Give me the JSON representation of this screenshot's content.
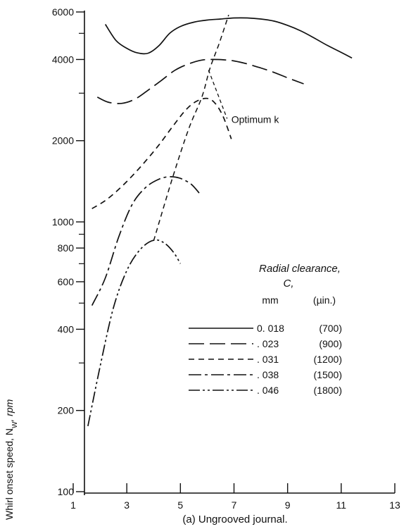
{
  "chart_data": {
    "type": "line",
    "caption": "(a) Ungrooved journal.",
    "ylabel_main": "Whirl onset speed, N",
    "ylabel_sub": "W",
    "ylabel_unit": ", rpm",
    "yscale": "log",
    "xlim": [
      1,
      13
    ],
    "ylim": [
      100,
      6000
    ],
    "x_ticks": [
      {
        "value": 1,
        "label": "1"
      },
      {
        "value": 3,
        "label": "3"
      },
      {
        "value": 5,
        "label": "5"
      },
      {
        "value": 7,
        "label": "7"
      },
      {
        "value": 9,
        "label": "9"
      },
      {
        "value": 11,
        "label": "11"
      },
      {
        "value": 13,
        "label": "13"
      }
    ],
    "y_ticks": [
      {
        "value": 100,
        "label": "100"
      },
      {
        "value": 200,
        "label": "200"
      },
      {
        "value": 400,
        "label": "400"
      },
      {
        "value": 600,
        "label": "600"
      },
      {
        "value": 800,
        "label": "800"
      },
      {
        "value": 1000,
        "label": "1000"
      },
      {
        "value": 2000,
        "label": "2000"
      },
      {
        "value": 4000,
        "label": "4000"
      },
      {
        "value": 6000,
        "label": "6000"
      }
    ],
    "legend": {
      "title_line1": "Radial clearance,",
      "title_line2": "C,",
      "col_mm": "mm",
      "col_in": "(µin.)"
    },
    "series": [
      {
        "mm": "0. 018",
        "in": "(700)",
        "dash": "none",
        "x": [
          2.2,
          2.6,
          3.0,
          3.4,
          3.8,
          4.2,
          4.6,
          5.0,
          5.5,
          6.0,
          6.5,
          7.0,
          7.5,
          8.0,
          8.5,
          9.0,
          9.5,
          10.0,
          10.5,
          11.0,
          11.4
        ],
        "y": [
          5400,
          4700,
          4400,
          4230,
          4220,
          4500,
          5000,
          5300,
          5500,
          5600,
          5650,
          5700,
          5700,
          5650,
          5550,
          5350,
          5100,
          4800,
          4500,
          4250,
          4050
        ]
      },
      {
        "mm": ". 023",
        "in": "(900)",
        "dash": "22 8",
        "x": [
          1.9,
          2.3,
          2.8,
          3.3,
          3.8,
          4.3,
          4.8,
          5.3,
          5.8,
          6.2,
          6.6,
          7.0,
          7.5,
          8.0,
          8.5,
          9.0,
          9.6
        ],
        "y": [
          2900,
          2780,
          2750,
          2850,
          3080,
          3350,
          3650,
          3850,
          3980,
          4000,
          3990,
          3950,
          3850,
          3720,
          3580,
          3420,
          3250
        ]
      },
      {
        "mm": ". 031",
        "in": "(1200)",
        "dash": "8 6",
        "x": [
          1.7,
          2.2,
          2.7,
          3.2,
          3.7,
          4.2,
          4.7,
          5.2,
          5.6,
          6.0,
          6.3,
          6.6,
          6.9
        ],
        "y": [
          1120,
          1200,
          1320,
          1480,
          1680,
          1930,
          2250,
          2600,
          2800,
          2870,
          2750,
          2450,
          2030
        ]
      },
      {
        "mm": ". 038",
        "in": "(1500)",
        "dash": "18 5 4 5",
        "x": [
          1.7,
          2.2,
          2.7,
          3.2,
          3.7,
          4.2,
          4.6,
          5.0,
          5.4,
          5.7
        ],
        "y": [
          490,
          620,
          880,
          1160,
          1340,
          1440,
          1470,
          1450,
          1380,
          1280
        ]
      },
      {
        "mm": ". 046",
        "in": "(1800)",
        "dash": "16 4 3 4 3 4",
        "x": [
          1.55,
          2.0,
          2.5,
          3.0,
          3.5,
          4.0,
          4.4,
          4.75,
          5.0
        ],
        "y": [
          175,
          290,
          480,
          660,
          790,
          855,
          835,
          770,
          700
        ]
      }
    ],
    "annotation": {
      "text": "Optimum k",
      "line_x": [
        4.0,
        4.7,
        5.3,
        5.8,
        6.1,
        6.45,
        6.8
      ],
      "line_y": [
        850,
        1450,
        2200,
        2900,
        3700,
        4600,
        5850
      ]
    }
  }
}
